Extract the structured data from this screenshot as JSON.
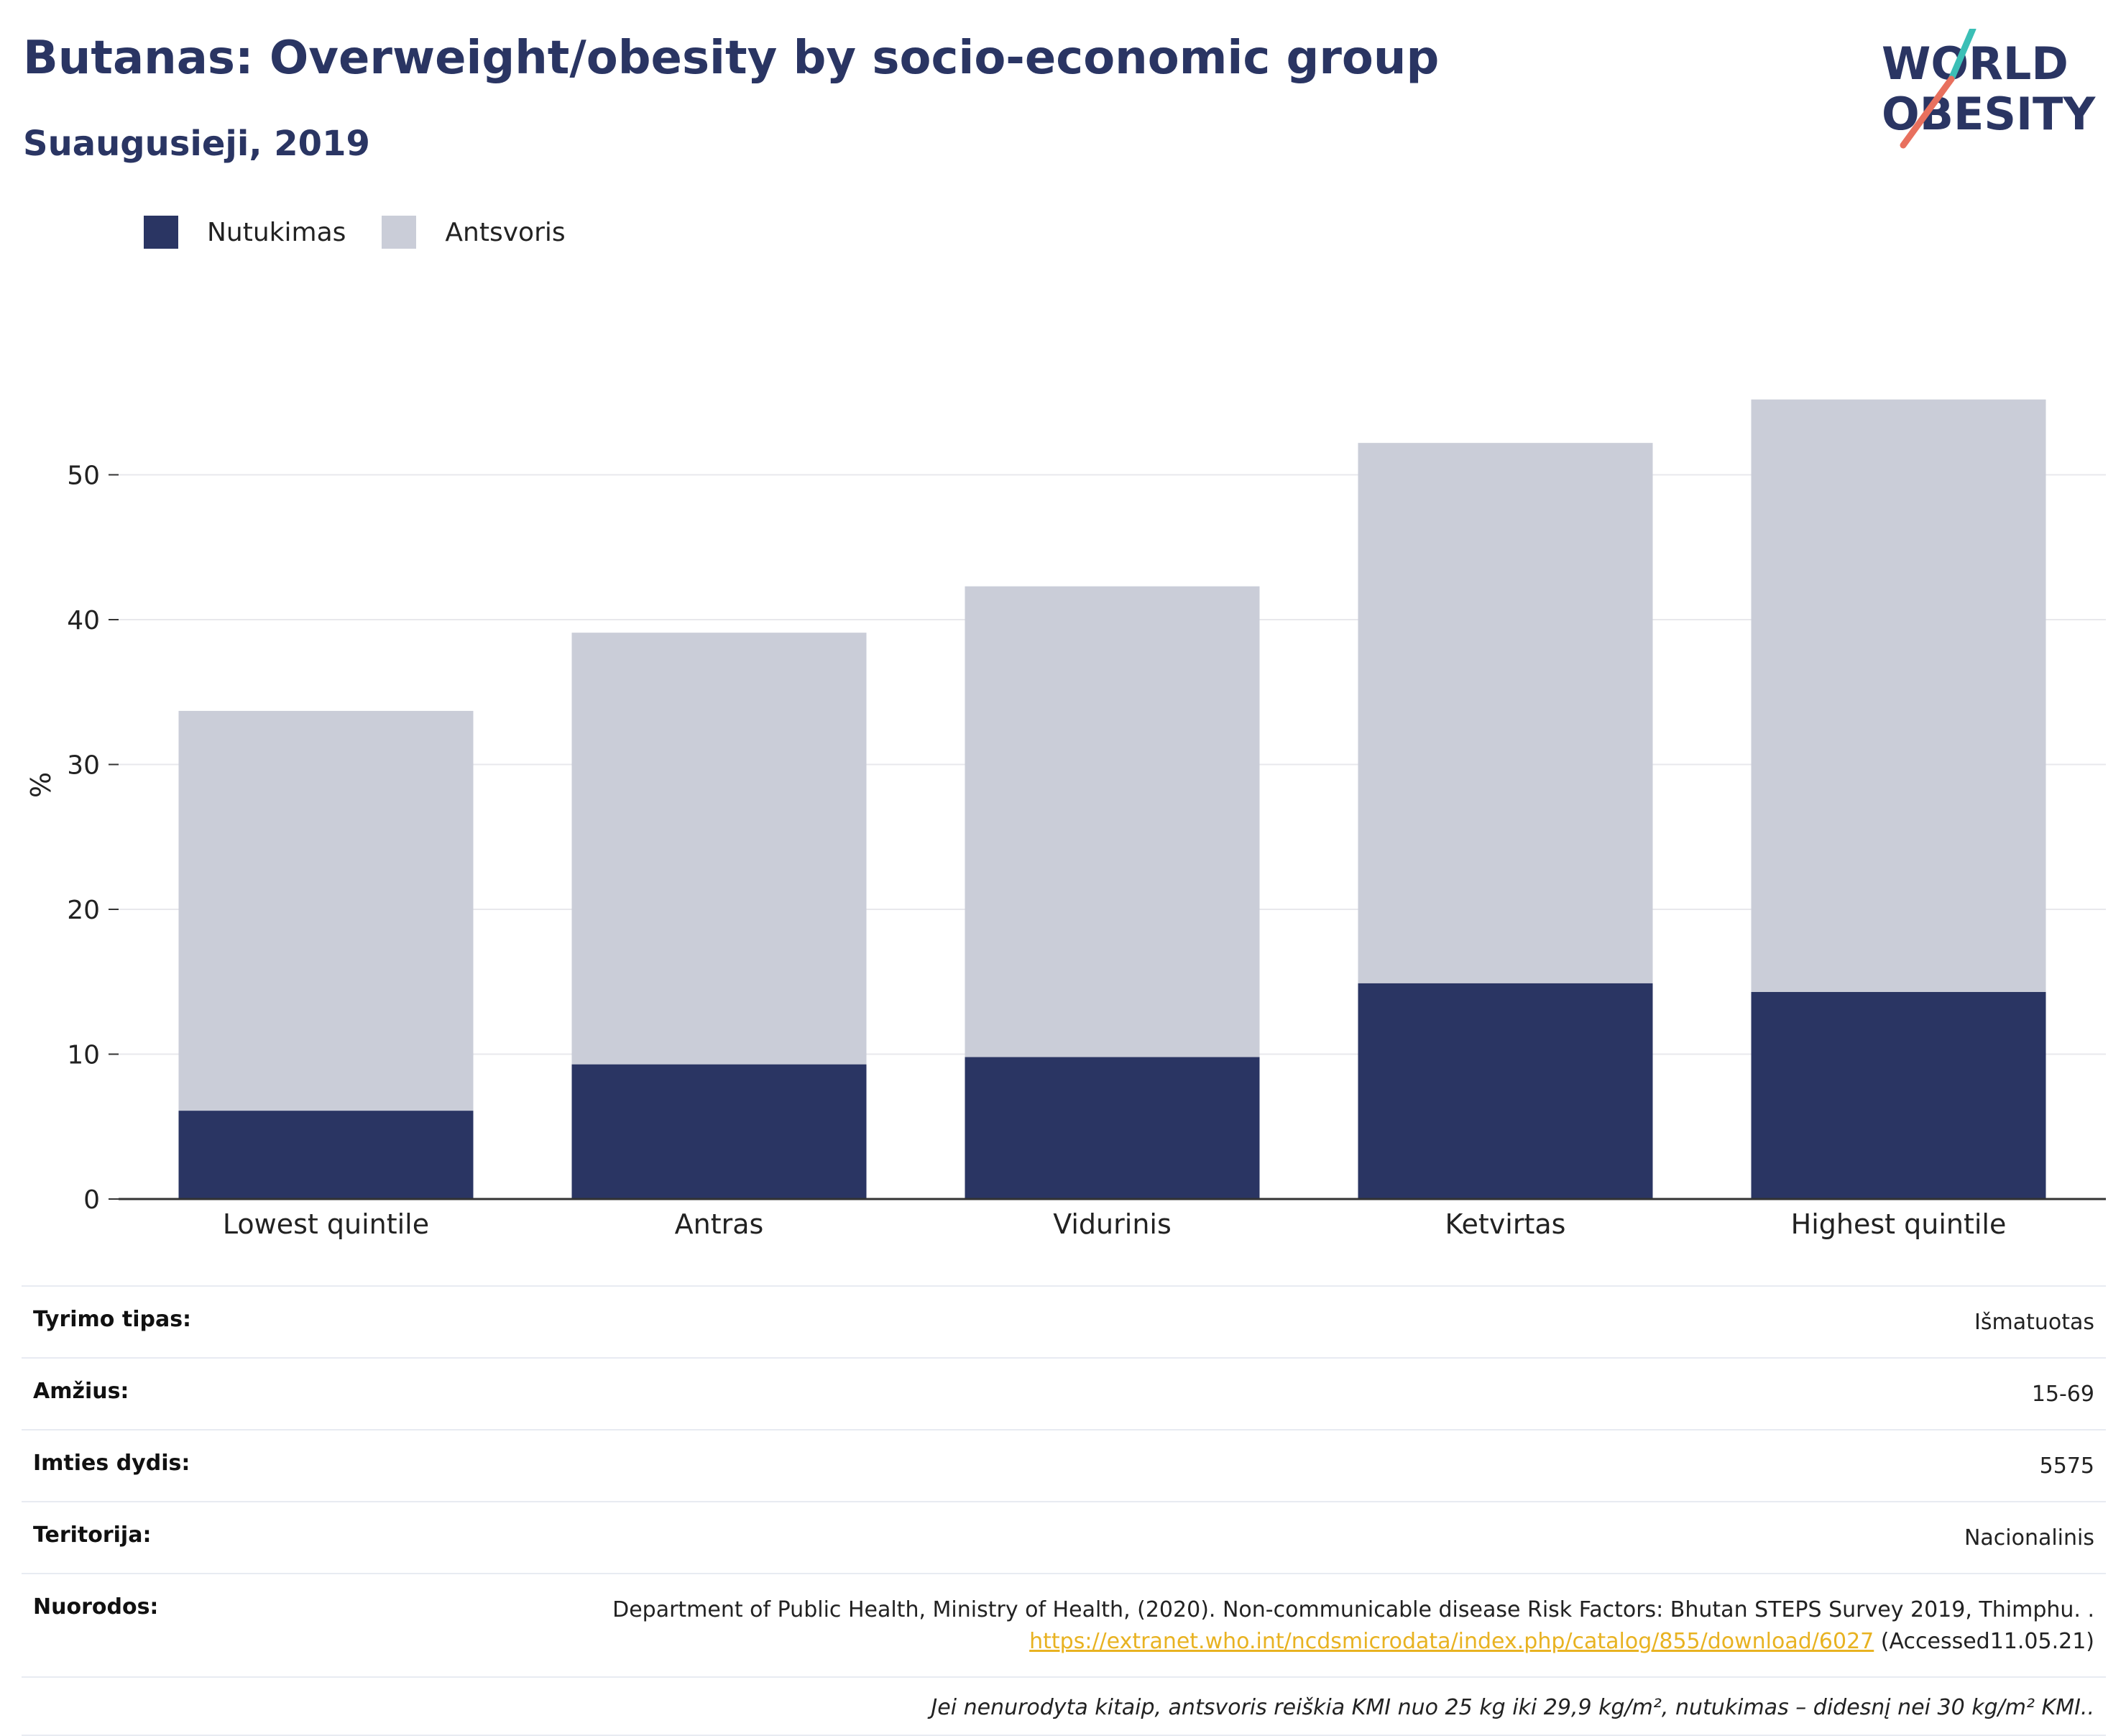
{
  "title": "Butanas: Overweight/obesity by socio-economic group",
  "subtitle": "Suaugusieji, 2019",
  "logo": {
    "line1": "WORLD",
    "line2": "OBESITY"
  },
  "colors": {
    "obesity": "#2a3563",
    "overweight": "#cacdd8",
    "logo_teal": "#3bbfb6",
    "logo_coral": "#e8705e"
  },
  "legend": [
    {
      "label": "Nutukimas",
      "color": "#2a3563"
    },
    {
      "label": "Antsvoris",
      "color": "#cacdd8"
    }
  ],
  "chart_data": {
    "type": "bar",
    "stacked": true,
    "categories": [
      "Lowest quintile",
      "Antras",
      "Vidurinis",
      "Ketvirtas",
      "Highest quintile"
    ],
    "series": [
      {
        "name": "Nutukimas",
        "values": [
          6.1,
          9.3,
          9.8,
          14.9,
          14.3
        ]
      },
      {
        "name": "Antsvoris",
        "values": [
          27.6,
          29.8,
          32.5,
          37.3,
          40.9
        ]
      }
    ],
    "ylabel": "%",
    "yticks": [
      0,
      10,
      20,
      30,
      40,
      50
    ],
    "ylim": [
      0,
      60
    ],
    "grid": true,
    "legend_position": "top-left"
  },
  "meta": {
    "survey_type": {
      "label": "Tyrimo tipas:",
      "value": "Išmatuotas"
    },
    "age": {
      "label": "Amžius:",
      "value": "15-69"
    },
    "sample_size": {
      "label": "Imties dydis:",
      "value": "5575"
    },
    "territory": {
      "label": "Teritorija:",
      "value": "Nacionalinis"
    },
    "references": {
      "label": "Nuorodos:",
      "text": "Department of Public Health, Ministry of Health, (2020). Non-communicable disease Risk Factors: Bhutan STEPS Survey 2019, Thimphu. .",
      "link": "https://extranet.who.int/ncdsmicrodata/index.php/catalog/855/download/6027",
      "accessed": "(Accessed11.05.21)"
    },
    "note": "Jei nenurodyta kitaip, antsvoris reiškia KMI nuo 25 kg iki 29,9 kg/m², nutukimas – didesnį nei 30 kg/m² KMI.."
  }
}
